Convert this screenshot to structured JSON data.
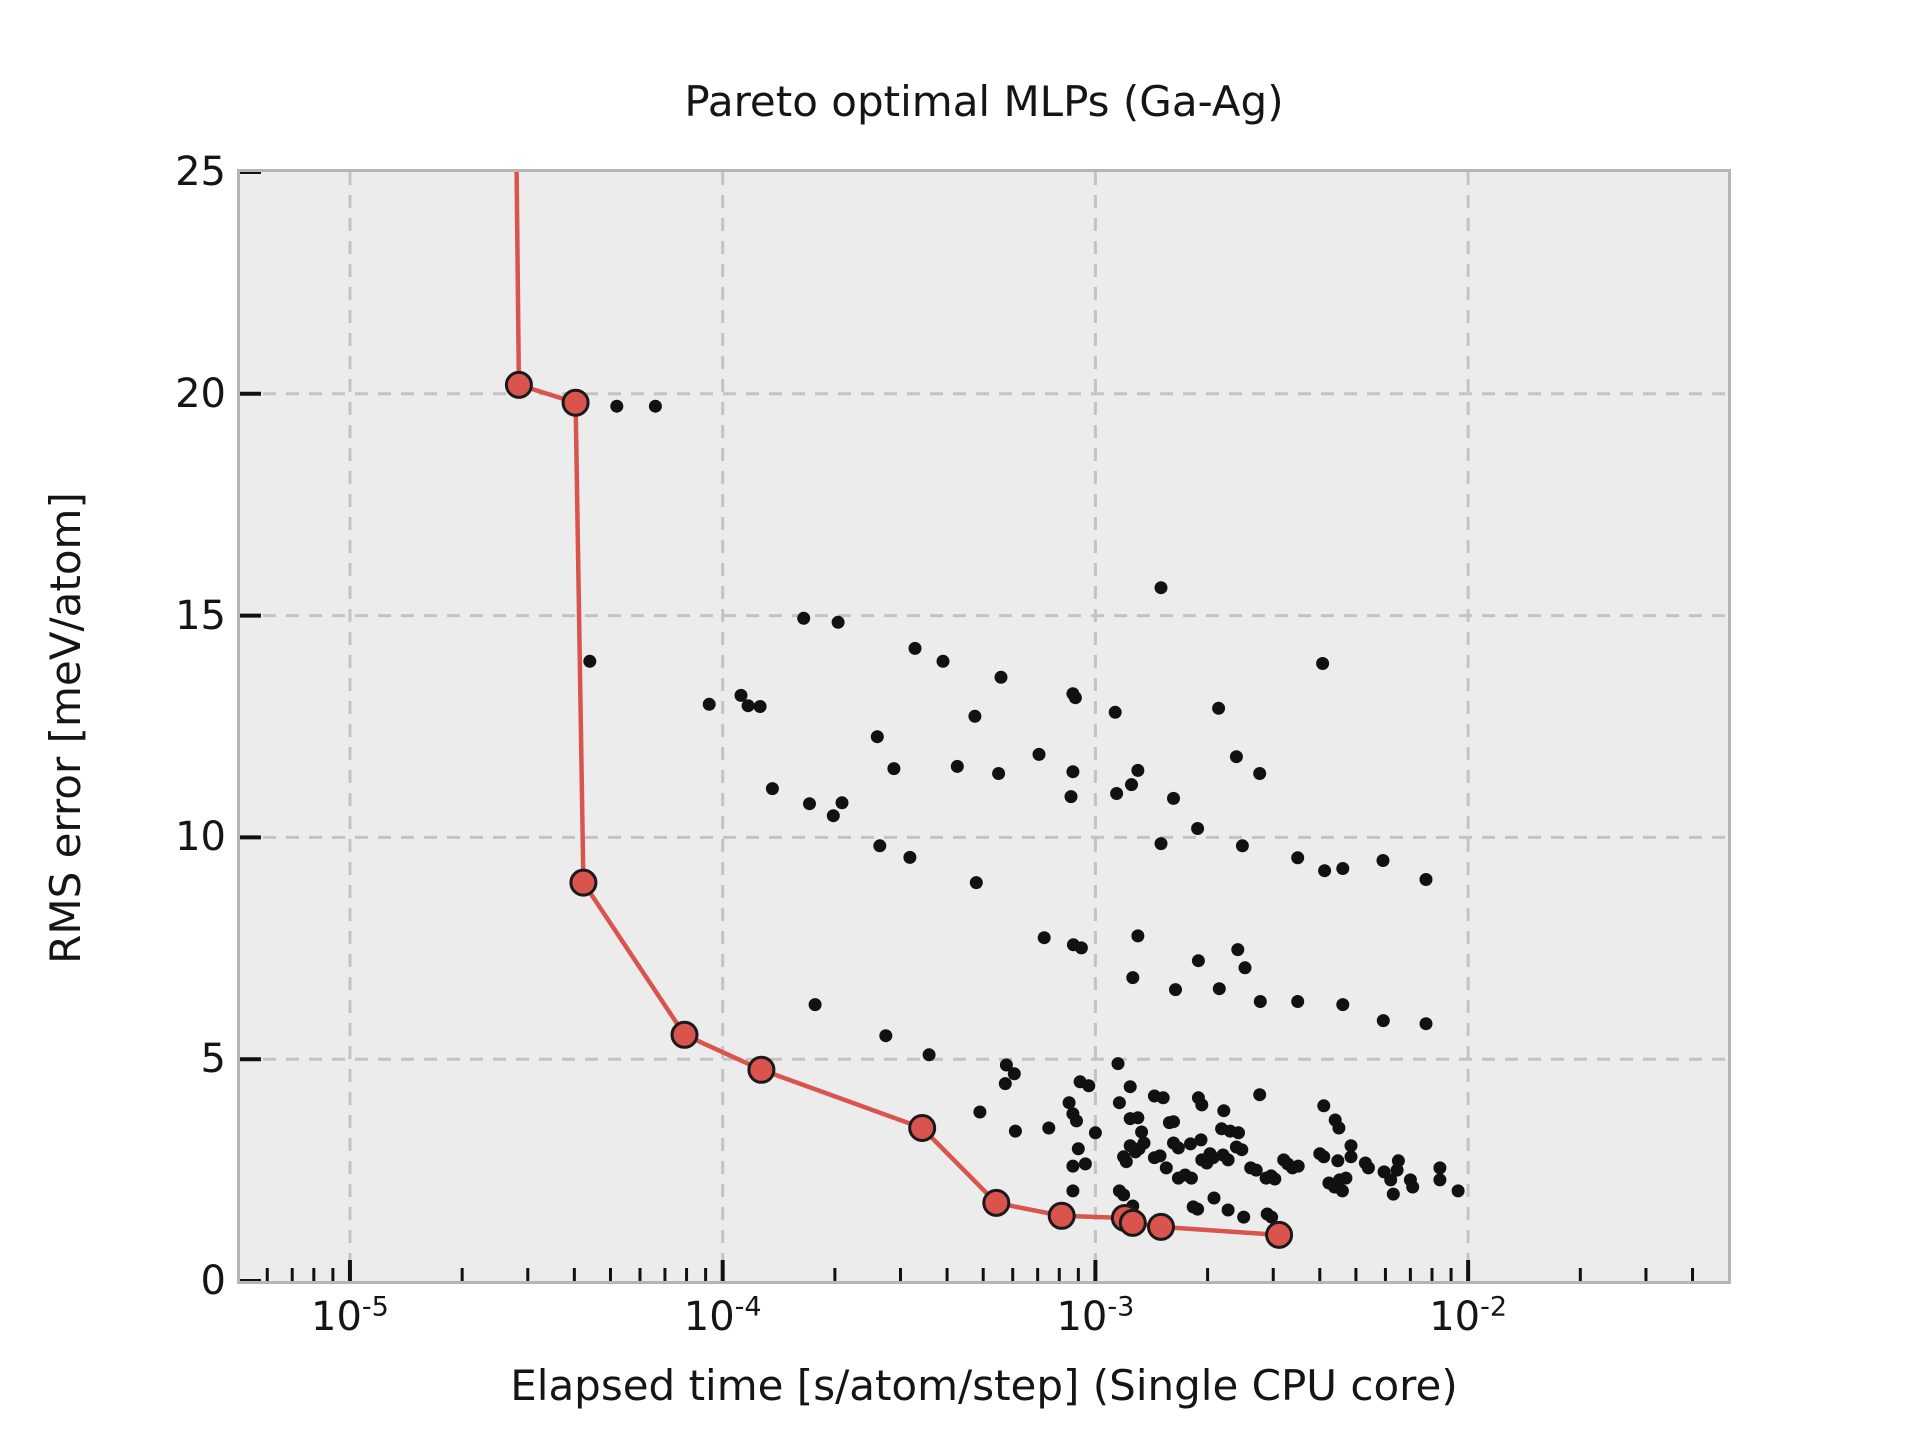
{
  "figure": {
    "title": "Pareto optimal MLPs (Ga-Ag)",
    "background_color": "#ffffff",
    "plot_background_color": "#ececec",
    "spine_color": "#b5b5b5",
    "grid_color": "#c3c3c3",
    "tick_color": "#111111"
  },
  "axes": {
    "xlabel": "Elapsed time [s/atom/step] (Single CPU core)",
    "ylabel": "RMS error [meV/atom]",
    "x_scale": "log",
    "x_range": [
      5.07e-06,
      0.0498
    ],
    "y_range": [
      0,
      25
    ],
    "grid": "dashed",
    "x_major_ticks": [
      {
        "value": 1e-05,
        "base": "10",
        "exp": "-5"
      },
      {
        "value": 0.0001,
        "base": "10",
        "exp": "-4"
      },
      {
        "value": 0.001,
        "base": "10",
        "exp": "-3"
      },
      {
        "value": 0.01,
        "base": "10",
        "exp": "-2"
      }
    ],
    "x_minor_mantissas": [
      2,
      3,
      4,
      5,
      6,
      7,
      8,
      9
    ],
    "y_ticks": [
      {
        "value": 0,
        "label": "0"
      },
      {
        "value": 5,
        "label": "5"
      },
      {
        "value": 10,
        "label": "10"
      },
      {
        "value": 15,
        "label": "15"
      },
      {
        "value": 20,
        "label": "20"
      },
      {
        "value": 25,
        "label": "25"
      }
    ]
  },
  "chart_data": {
    "type": "scatter",
    "title": "Pareto optimal MLPs (Ga-Ag)",
    "xlabel": "Elapsed time [s/atom/step] (Single CPU core)",
    "ylabel": "RMS error [meV/atom]",
    "xlim": [
      5.07e-06,
      0.0498
    ],
    "ylim": [
      0,
      25
    ],
    "legend": "none",
    "series": [
      {
        "name": "candidate-mlps",
        "marker": "dot",
        "color": "#111111",
        "line": false,
        "points": [
          [
            5.2e-05,
            19.72
          ],
          [
            6.6e-05,
            19.72
          ],
          [
            4.4e-05,
            13.97
          ],
          [
            0.000165,
            14.94
          ],
          [
            0.000204,
            14.85
          ],
          [
            0.000328,
            14.26
          ],
          [
            0.00039,
            13.97
          ],
          [
            0.000558,
            13.61
          ],
          [
            0.00087,
            13.24
          ],
          [
            0.000884,
            13.15
          ],
          [
            9.2e-05,
            13.0
          ],
          [
            0.000112,
            13.2
          ],
          [
            0.000117,
            12.97
          ],
          [
            0.000126,
            12.95
          ],
          [
            0.000475,
            12.73
          ],
          [
            0.00026,
            12.27
          ],
          [
            0.000288,
            11.55
          ],
          [
            0.000426,
            11.6
          ],
          [
            0.00055,
            11.44
          ],
          [
            0.000706,
            11.87
          ],
          [
            0.00087,
            11.48
          ],
          [
            0.00086,
            10.92
          ],
          [
            0.000136,
            11.1
          ],
          [
            0.000171,
            10.76
          ],
          [
            0.000209,
            10.78
          ],
          [
            0.000198,
            10.49
          ],
          [
            0.0015,
            15.63
          ],
          [
            0.00407,
            13.92
          ],
          [
            0.00113,
            12.82
          ],
          [
            0.00214,
            12.91
          ],
          [
            0.00239,
            11.82
          ],
          [
            0.00276,
            11.44
          ],
          [
            0.0013,
            11.51
          ],
          [
            0.00125,
            11.19
          ],
          [
            0.00114,
            10.99
          ],
          [
            0.00162,
            10.88
          ],
          [
            0.00188,
            10.2
          ],
          [
            0.000264,
            9.81
          ],
          [
            0.000318,
            9.55
          ],
          [
            0.000479,
            8.98
          ],
          [
            0.000729,
            7.74
          ],
          [
            0.000177,
            6.23
          ],
          [
            0.000274,
            5.53
          ],
          [
            0.000358,
            5.1
          ],
          [
            0.000577,
            4.87
          ],
          [
            0.000606,
            4.67
          ],
          [
            0.000573,
            4.45
          ],
          [
            0.0015,
            9.86
          ],
          [
            0.00248,
            9.81
          ],
          [
            0.00349,
            9.54
          ],
          [
            0.00412,
            9.25
          ],
          [
            0.00461,
            9.3
          ],
          [
            0.00591,
            9.48
          ],
          [
            0.00771,
            9.05
          ],
          [
            0.0013,
            7.78
          ],
          [
            0.000873,
            7.58
          ],
          [
            0.000917,
            7.51
          ],
          [
            0.00241,
            7.47
          ],
          [
            0.00189,
            7.22
          ],
          [
            0.00252,
            7.06
          ],
          [
            0.00126,
            6.84
          ],
          [
            0.00164,
            6.57
          ],
          [
            0.00215,
            6.59
          ],
          [
            0.00277,
            6.3
          ],
          [
            0.00349,
            6.3
          ],
          [
            0.00461,
            6.23
          ],
          [
            0.00592,
            5.87
          ],
          [
            0.00771,
            5.8
          ],
          [
            0.00115,
            4.9
          ],
          [
            0.00091,
            4.49
          ],
          [
            0.00096,
            4.4
          ],
          [
            0.00124,
            4.38
          ],
          [
            0.00144,
            4.17
          ],
          [
            0.00152,
            4.13
          ],
          [
            0.00189,
            4.13
          ],
          [
            0.00193,
            3.97
          ],
          [
            0.00276,
            4.2
          ],
          [
            0.00049,
            3.81
          ],
          [
            0.00085,
            4.02
          ],
          [
            0.00087,
            3.77
          ],
          [
            0.00089,
            3.61
          ],
          [
            0.00116,
            4.02
          ],
          [
            0.00124,
            3.66
          ],
          [
            0.0013,
            3.68
          ],
          [
            0.00158,
            3.57
          ],
          [
            0.00162,
            3.59
          ],
          [
            0.00221,
            3.84
          ],
          [
            0.0041,
            3.95
          ],
          [
            0.00061,
            3.38
          ],
          [
            0.00075,
            3.45
          ],
          [
            0.001,
            3.34
          ],
          [
            0.00133,
            3.36
          ],
          [
            0.00135,
            3.11
          ],
          [
            0.00218,
            3.43
          ],
          [
            0.0023,
            3.38
          ],
          [
            0.00242,
            3.34
          ],
          [
            0.0044,
            3.63
          ],
          [
            0.0045,
            3.45
          ],
          [
            0.00162,
            3.11
          ],
          [
            0.00167,
            3.0
          ],
          [
            0.0018,
            3.09
          ],
          [
            0.00192,
            3.18
          ],
          [
            0.00203,
            2.87
          ],
          [
            0.00124,
            3.05
          ],
          [
            0.00128,
            2.91
          ],
          [
            0.00131,
            2.98
          ],
          [
            0.0009,
            2.98
          ],
          [
            0.00094,
            2.64
          ],
          [
            0.00087,
            2.59
          ],
          [
            0.00119,
            2.8
          ],
          [
            0.00121,
            2.69
          ],
          [
            0.00144,
            2.78
          ],
          [
            0.00149,
            2.82
          ],
          [
            0.00155,
            2.55
          ],
          [
            0.00167,
            2.32
          ],
          [
            0.00174,
            2.39
          ],
          [
            0.00181,
            2.32
          ],
          [
            0.00193,
            2.73
          ],
          [
            0.00199,
            2.66
          ],
          [
            0.00207,
            2.78
          ],
          [
            0.0022,
            2.84
          ],
          [
            0.00227,
            2.73
          ],
          [
            0.00239,
            3.02
          ],
          [
            0.00247,
            2.96
          ],
          [
            0.00261,
            2.55
          ],
          [
            0.0027,
            2.5
          ],
          [
            0.00287,
            2.32
          ],
          [
            0.00296,
            2.37
          ],
          [
            0.00303,
            2.3
          ],
          [
            0.0032,
            2.73
          ],
          [
            0.00328,
            2.64
          ],
          [
            0.00338,
            2.55
          ],
          [
            0.0035,
            2.59
          ],
          [
            0.004,
            2.87
          ],
          [
            0.0041,
            2.8
          ],
          [
            0.00485,
            3.05
          ],
          [
            0.00485,
            2.8
          ],
          [
            0.00447,
            2.71
          ],
          [
            0.0053,
            2.66
          ],
          [
            0.0054,
            2.55
          ],
          [
            0.00423,
            2.21
          ],
          [
            0.00438,
            2.12
          ],
          [
            0.00452,
            2.28
          ],
          [
            0.0047,
            2.32
          ],
          [
            0.0046,
            2.03
          ],
          [
            0.00595,
            2.46
          ],
          [
            0.0062,
            2.28
          ],
          [
            0.00645,
            2.5
          ],
          [
            0.0065,
            2.71
          ],
          [
            0.0063,
            1.96
          ],
          [
            0.007,
            2.28
          ],
          [
            0.0071,
            2.12
          ],
          [
            0.0084,
            2.55
          ],
          [
            0.0084,
            2.28
          ],
          [
            0.0094,
            2.03
          ],
          [
            0.00116,
            2.03
          ],
          [
            0.00119,
            1.94
          ],
          [
            0.00126,
            1.69
          ],
          [
            0.00087,
            2.03
          ],
          [
            0.00183,
            1.67
          ],
          [
            0.00188,
            1.62
          ],
          [
            0.00208,
            1.87
          ],
          [
            0.00227,
            1.6
          ],
          [
            0.0025,
            1.44
          ],
          [
            0.00289,
            1.51
          ],
          [
            0.00297,
            1.44
          ]
        ]
      },
      {
        "name": "pareto-front",
        "marker": "circle",
        "color": "#d9544d",
        "edge_color": "#1a1a1a",
        "line": true,
        "clip_entry": [
          2.8e-05,
          25
        ],
        "points": [
          [
            2.84e-05,
            20.2
          ],
          [
            4.03e-05,
            19.8
          ],
          [
            4.23e-05,
            8.98
          ],
          [
            7.9e-05,
            5.55
          ],
          [
            0.000127,
            4.76
          ],
          [
            0.000343,
            3.45
          ],
          [
            0.000542,
            1.76
          ],
          [
            0.000812,
            1.47
          ],
          [
            0.0012,
            1.42
          ],
          [
            0.00126,
            1.31
          ],
          [
            0.0015,
            1.22
          ],
          [
            0.00311,
            1.04
          ]
        ]
      }
    ]
  }
}
